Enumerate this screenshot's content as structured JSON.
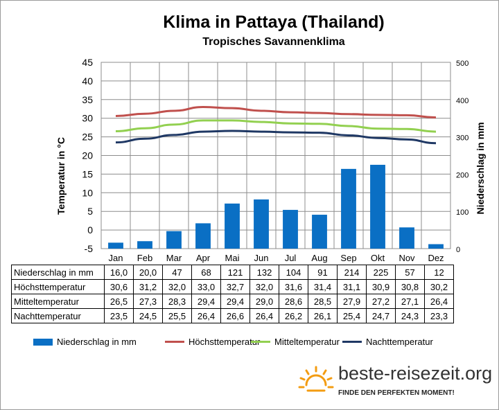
{
  "chart_data": {
    "type": "bar",
    "title": "Klima in Pattaya (Thailand)",
    "subtitle": "Tropisches  Savannenklima",
    "ylabel_left": "Temperatur in °C",
    "ylabel_right": "Niederschlag in mm",
    "categories": [
      "Jan",
      "Feb",
      "Mar",
      "Apr",
      "Mai",
      "Jun",
      "Jul",
      "Aug",
      "Sep",
      "Okt",
      "Nov",
      "Dez"
    ],
    "ylim_left": [
      -5,
      45
    ],
    "yticks_left": [
      "45",
      "40",
      "35",
      "30",
      "25",
      "20",
      "15",
      "10",
      "5",
      "0",
      "-5"
    ],
    "ylim_right": [
      0,
      500
    ],
    "yticks_right": [
      "500",
      "400",
      "300",
      "200",
      "100",
      "0"
    ],
    "grid": true,
    "legend_position": "bottom",
    "series": [
      {
        "name": "Niederschlag in mm",
        "kind": "bar",
        "axis": "right",
        "color": "#0a6fc4",
        "values": [
          16.0,
          20.0,
          47,
          68,
          121,
          132,
          104,
          91,
          214,
          225,
          57,
          12
        ],
        "labels": [
          "16,0",
          "20,0",
          "47",
          "68",
          "121",
          "132",
          "104",
          "91",
          "214",
          "225",
          "57",
          "12"
        ]
      },
      {
        "name": "Höchsttemperatur",
        "kind": "line",
        "axis": "left",
        "color": "#c0504d",
        "values": [
          30.6,
          31.2,
          32.0,
          33.0,
          32.7,
          32.0,
          31.6,
          31.4,
          31.1,
          30.9,
          30.8,
          30.2
        ],
        "labels": [
          "30,6",
          "31,2",
          "32,0",
          "33,0",
          "32,7",
          "32,0",
          "31,6",
          "31,4",
          "31,1",
          "30,9",
          "30,8",
          "30,2"
        ]
      },
      {
        "name": "Mitteltemperatur",
        "kind": "line",
        "axis": "left",
        "color": "#92d050",
        "values": [
          26.5,
          27.3,
          28.3,
          29.4,
          29.4,
          29.0,
          28.6,
          28.5,
          27.9,
          27.2,
          27.1,
          26.4
        ],
        "labels": [
          "26,5",
          "27,3",
          "28,3",
          "29,4",
          "29,4",
          "29,0",
          "28,6",
          "28,5",
          "27,9",
          "27,2",
          "27,1",
          "26,4"
        ]
      },
      {
        "name": "Nachttemperatur",
        "kind": "line",
        "axis": "left",
        "color": "#1f3864",
        "values": [
          23.5,
          24.5,
          25.5,
          26.4,
          26.6,
          26.4,
          26.2,
          26.1,
          25.4,
          24.7,
          24.3,
          23.3
        ],
        "labels": [
          "23,5",
          "24,5",
          "25,5",
          "26,4",
          "26,6",
          "26,4",
          "26,2",
          "26,1",
          "25,4",
          "24,7",
          "24,3",
          "23,3"
        ]
      }
    ]
  },
  "brand": {
    "name": "beste-reisezeit.org",
    "tagline": "FINDE DEN PERFEKTEN MOMENT!",
    "sun_icon": "sun-icon",
    "accent": "#f39c12"
  }
}
